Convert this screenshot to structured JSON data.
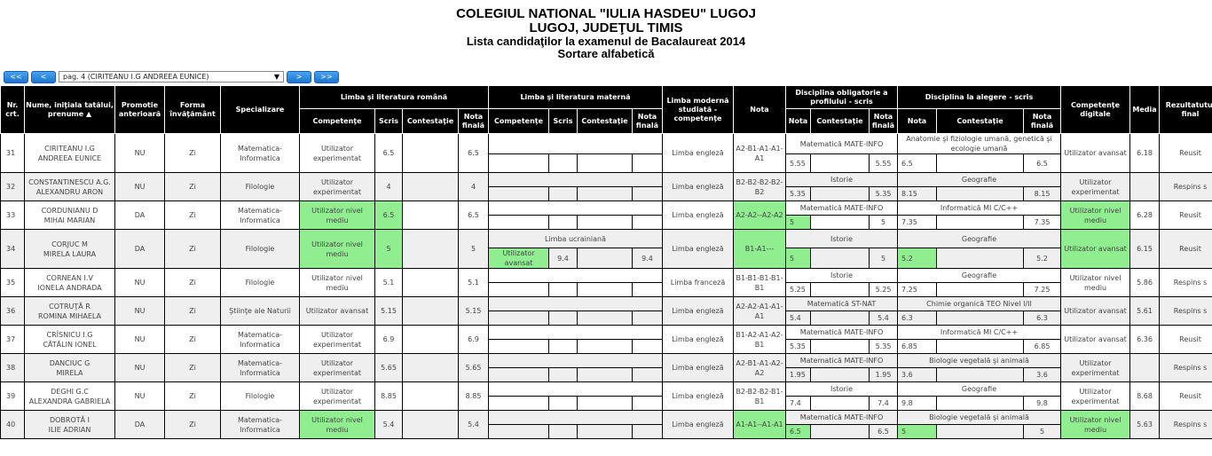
{
  "header": {
    "school": "COLEGIUL NATIONAL \"IULIA HASDEU\" LUGOJ",
    "location": "LUGOJ, JUDEŢUL TIMIS",
    "list_title": "Lista candidaţilor la examenul de Bacalaureat 2014",
    "sort": "Sortare alfabetică"
  },
  "pager": {
    "first": "<<",
    "prev": "<",
    "next": ">",
    "last": ">>",
    "selected": "pag. 4 (CIRITEANU I.G ANDREEA EUNICE)",
    "arrow": "▼"
  },
  "columns": {
    "nr": "Nr. crt.",
    "name": "Nume, iniţiala tatălui, prenume ▲",
    "promotie": "Promotie anterioară",
    "forma": "Forma învăţământ",
    "spec": "Specializare",
    "llr": "Limba şi literatura română",
    "lm": "Limba şi literatura maternă",
    "competente": "Competenţe",
    "scris": "Scris",
    "contestatie": "Contestaţie",
    "nota_finala": "Nota finală",
    "limba_moderna": "Limba modernă studiată - competenţe",
    "nota": "Nota",
    "oblig": "Disciplina obligatorie a profilului - scris",
    "alegere": "Disciplina la alegere - scris",
    "comp_dig": "Competenţe digitale",
    "media": "Media",
    "rezultat": "Rezultatutul final"
  },
  "colors": {
    "highlight": "#90ee90",
    "header_bg": "#000000",
    "alt_row": "#efefef",
    "button": "#1b74d0"
  },
  "rows": [
    {
      "nr": "31",
      "name1": "CIRITEANU I.G",
      "name2": "ANDREEA EUNICE",
      "promotie": "NU",
      "forma": "Zi",
      "spec": "Matematica-Informatica",
      "llr_comp": "Utilizator experimentat",
      "llr_scris": "6.5",
      "llr_contest": "",
      "llr_final": "6.5",
      "lm_subject": "",
      "lm_comp": "",
      "lm_scris": "",
      "lm_contest": "",
      "lm_final": "",
      "limba_moderna": "Limba engleză",
      "nota_lm": "A2-B1-A1-A1-A1",
      "oblig_subject": "Matematică MATE-INFO",
      "oblig_nota": "5.55",
      "oblig_contest": "",
      "oblig_final": "5.55",
      "aleg_subject": "Anatomie şi fiziologie umană, genetică şi ecologie umană",
      "aleg_nota": "6.5",
      "aleg_contest": "",
      "aleg_final": "6.5",
      "comp_dig": "Utilizator avansat",
      "media": "6.18",
      "rezultat": "Reusit",
      "hl": []
    },
    {
      "nr": "32",
      "name1": "CONSTANTINESCU A.G.",
      "name2": "ALEXANDRU ARON",
      "promotie": "NU",
      "forma": "Zi",
      "spec": "Filologie",
      "llr_comp": "Utilizator experimentat",
      "llr_scris": "4",
      "llr_contest": "",
      "llr_final": "4",
      "lm_subject": "",
      "lm_comp": "",
      "lm_scris": "",
      "lm_contest": "",
      "lm_final": "",
      "limba_moderna": "Limba engleză",
      "nota_lm": "B2-B2-B2-B2-B2",
      "oblig_subject": "Istorie",
      "oblig_nota": "5.35",
      "oblig_contest": "",
      "oblig_final": "5.35",
      "aleg_subject": "Geografie",
      "aleg_nota": "8.15",
      "aleg_contest": "",
      "aleg_final": "8.15",
      "comp_dig": "Utilizator experimentat",
      "media": "",
      "rezultat": "Respins s",
      "hl": []
    },
    {
      "nr": "33",
      "name1": "CORDUNIANU D",
      "name2": "MIHAI MARIAN",
      "promotie": "DA",
      "forma": "Zi",
      "spec": "Matematica-Informatica",
      "llr_comp": "Utilizator nivel mediu",
      "llr_scris": "6.5",
      "llr_contest": "",
      "llr_final": "6.5",
      "lm_subject": "",
      "lm_comp": "",
      "lm_scris": "",
      "lm_contest": "",
      "lm_final": "",
      "limba_moderna": "Limba engleză",
      "nota_lm": "A2-A2--A2-A2",
      "oblig_subject": "Matematică MATE-INFO",
      "oblig_nota": "5",
      "oblig_contest": "",
      "oblig_final": "5",
      "aleg_subject": "Informatică MI C/C++",
      "aleg_nota": "7.35",
      "aleg_contest": "",
      "aleg_final": "7.35",
      "comp_dig": "Utilizator nivel mediu",
      "media": "6.28",
      "rezultat": "Reusit",
      "hl": [
        "llr_comp",
        "llr_scris",
        "nota_lm",
        "oblig_nota",
        "comp_dig"
      ]
    },
    {
      "nr": "34",
      "name1": "CORJUC M",
      "name2": "MIRELA LAURA",
      "promotie": "DA",
      "forma": "Zi",
      "spec": "Filologie",
      "llr_comp": "Utilizator nivel mediu",
      "llr_scris": "5",
      "llr_contest": "",
      "llr_final": "5",
      "lm_subject": "Limba ucrainiană",
      "lm_comp": "Utilizator avansat",
      "lm_scris": "9.4",
      "lm_contest": "",
      "lm_final": "9.4",
      "limba_moderna": "Limba engleză",
      "nota_lm": "B1-A1---",
      "oblig_subject": "Istorie",
      "oblig_nota": "5",
      "oblig_contest": "",
      "oblig_final": "5",
      "aleg_subject": "Geografie",
      "aleg_nota": "5.2",
      "aleg_contest": "",
      "aleg_final": "5.2",
      "comp_dig": "Utilizator avansat",
      "media": "6.15",
      "rezultat": "Reusit",
      "hl": [
        "llr_comp",
        "llr_scris",
        "lm_comp",
        "nota_lm",
        "oblig_nota",
        "aleg_nota",
        "comp_dig"
      ]
    },
    {
      "nr": "35",
      "name1": "CORNEAN I.V",
      "name2": "IONELA ANDRADA",
      "promotie": "NU",
      "forma": "Zi",
      "spec": "Filologie",
      "llr_comp": "Utilizator nivel mediu",
      "llr_scris": "5.1",
      "llr_contest": "",
      "llr_final": "5.1",
      "lm_subject": "",
      "lm_comp": "",
      "lm_scris": "",
      "lm_contest": "",
      "lm_final": "",
      "limba_moderna": "Limba franceză",
      "nota_lm": "B1-B1-B1-B1-B1",
      "oblig_subject": "Istorie",
      "oblig_nota": "5.25",
      "oblig_contest": "",
      "oblig_final": "5.25",
      "aleg_subject": "Geografie",
      "aleg_nota": "7.25",
      "aleg_contest": "",
      "aleg_final": "7.25",
      "comp_dig": "Utilizator nivel mediu",
      "media": "5.86",
      "rezultat": "Respins s",
      "hl": []
    },
    {
      "nr": "36",
      "name1": "COTRUŢĂ R",
      "name2": "ROMINA MIHAELA",
      "promotie": "NU",
      "forma": "Zi",
      "spec": "Ştiinţe ale Naturii",
      "llr_comp": "Utilizator avansat",
      "llr_scris": "5.15",
      "llr_contest": "",
      "llr_final": "5.15",
      "lm_subject": "",
      "lm_comp": "",
      "lm_scris": "",
      "lm_contest": "",
      "lm_final": "",
      "limba_moderna": "Limba engleză",
      "nota_lm": "A2-A2-A1-A1-A1",
      "oblig_subject": "Matematică ST-NAT",
      "oblig_nota": "5.4",
      "oblig_contest": "",
      "oblig_final": "5.4",
      "aleg_subject": "Chimie organică TEO Nivel I/II",
      "aleg_nota": "6.3",
      "aleg_contest": "",
      "aleg_final": "6.3",
      "comp_dig": "Utilizator avansat",
      "media": "5.61",
      "rezultat": "Respins s",
      "hl": []
    },
    {
      "nr": "37",
      "name1": "CRÎSNICU I.G",
      "name2": "CĂTĂLIN IONEL",
      "promotie": "NU",
      "forma": "Zi",
      "spec": "Matematica-Informatica",
      "llr_comp": "Utilizator experimentat",
      "llr_scris": "6.9",
      "llr_contest": "",
      "llr_final": "6.9",
      "lm_subject": "",
      "lm_comp": "",
      "lm_scris": "",
      "lm_contest": "",
      "lm_final": "",
      "limba_moderna": "Limba engleză",
      "nota_lm": "B1-A2-A1-A2-B1",
      "oblig_subject": "Matematică MATE-INFO",
      "oblig_nota": "5.35",
      "oblig_contest": "",
      "oblig_final": "5.35",
      "aleg_subject": "Informatică MI C/C++",
      "aleg_nota": "6.85",
      "aleg_contest": "",
      "aleg_final": "6.85",
      "comp_dig": "Utilizator avansat",
      "media": "6.36",
      "rezultat": "Reusit",
      "hl": []
    },
    {
      "nr": "38",
      "name1": "DANCIUC G",
      "name2": "MIRELA",
      "promotie": "NU",
      "forma": "Zi",
      "spec": "Matematica-Informatica",
      "llr_comp": "Utilizator experimentat",
      "llr_scris": "5.65",
      "llr_contest": "",
      "llr_final": "5.65",
      "lm_subject": "",
      "lm_comp": "",
      "lm_scris": "",
      "lm_contest": "",
      "lm_final": "",
      "limba_moderna": "Limba engleză",
      "nota_lm": "A2-B1-A1-A2-A2",
      "oblig_subject": "Matematică MATE-INFO",
      "oblig_nota": "1.95",
      "oblig_contest": "",
      "oblig_final": "1.95",
      "aleg_subject": "Biologie vegetală şi animală",
      "aleg_nota": "3.6",
      "aleg_contest": "",
      "aleg_final": "3.6",
      "comp_dig": "Utilizator experimentat",
      "media": "",
      "rezultat": "Respins s",
      "hl": []
    },
    {
      "nr": "39",
      "name1": "DEGHI G.C",
      "name2": "ALEXANDRA GABRIELA",
      "promotie": "NU",
      "forma": "Zi",
      "spec": "Filologie",
      "llr_comp": "Utilizator experimentat",
      "llr_scris": "8.85",
      "llr_contest": "",
      "llr_final": "8.85",
      "lm_subject": "",
      "lm_comp": "",
      "lm_scris": "",
      "lm_contest": "",
      "lm_final": "",
      "limba_moderna": "Limba engleză",
      "nota_lm": "B2-B2-B2-B1-B1",
      "oblig_subject": "Istorie",
      "oblig_nota": "7.4",
      "oblig_contest": "",
      "oblig_final": "7.4",
      "aleg_subject": "Geografie",
      "aleg_nota": "9.8",
      "aleg_contest": "",
      "aleg_final": "9.8",
      "comp_dig": "Utilizator experimentat",
      "media": "8.68",
      "rezultat": "Reusit",
      "hl": []
    },
    {
      "nr": "40",
      "name1": "DOBROTĂ I",
      "name2": "ILIE ADRIAN",
      "promotie": "DA",
      "forma": "Zi",
      "spec": "Matematica-Informatica",
      "llr_comp": "Utilizator nivel mediu",
      "llr_scris": "5.4",
      "llr_contest": "",
      "llr_final": "5.4",
      "lm_subject": "",
      "lm_comp": "",
      "lm_scris": "",
      "lm_contest": "",
      "lm_final": "",
      "limba_moderna": "Limba engleză",
      "nota_lm": "A1-A1--A1-A1",
      "oblig_subject": "Matematică MATE-INFO",
      "oblig_nota": "6.5",
      "oblig_contest": "",
      "oblig_final": "6.5",
      "aleg_subject": "Biologie vegetală şi animală",
      "aleg_nota": "5",
      "aleg_contest": "",
      "aleg_final": "5",
      "comp_dig": "Utilizator nivel mediu",
      "media": "5.63",
      "rezultat": "Respins s",
      "hl": [
        "llr_comp",
        "nota_lm",
        "oblig_nota",
        "aleg_nota",
        "comp_dig"
      ]
    }
  ]
}
